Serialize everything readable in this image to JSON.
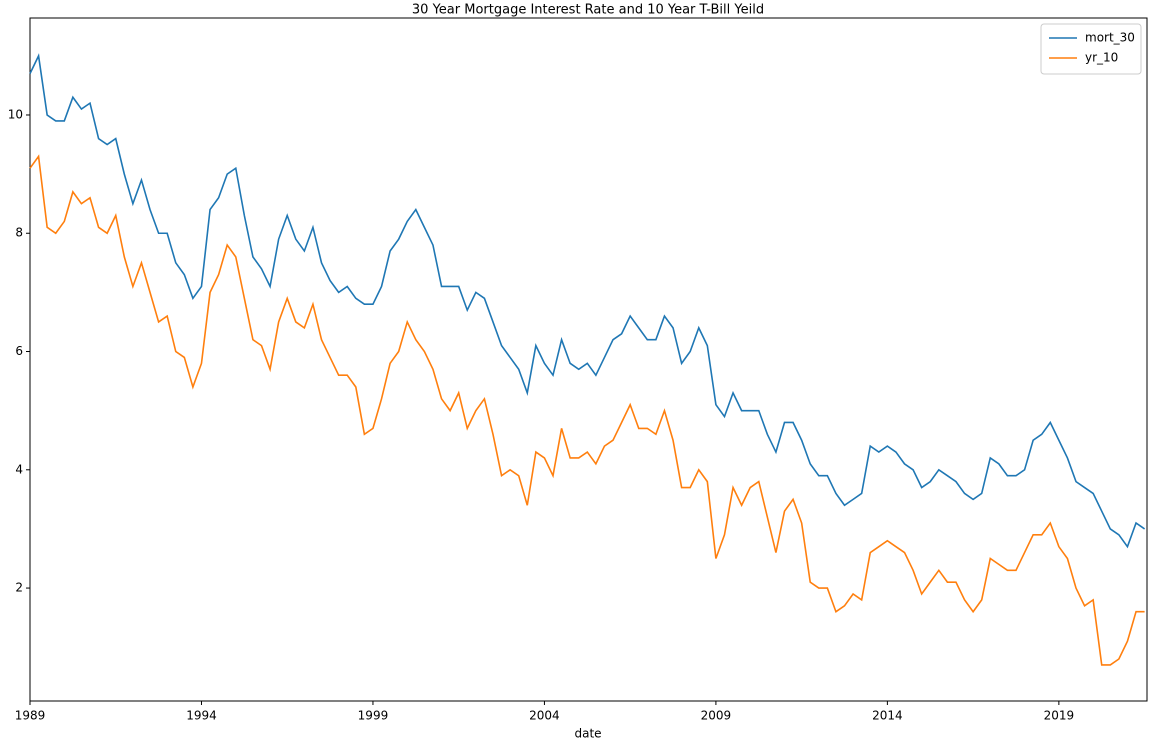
{
  "chart_data": {
    "type": "line",
    "title": "30 Year Mortgage Interest Rate and 10 Year T-Bill Yeild",
    "x_label": "date",
    "x": [
      1989,
      1989.25,
      1989.5,
      1989.75,
      1990,
      1990.25,
      1990.5,
      1990.75,
      1991,
      1991.25,
      1991.5,
      1991.75,
      1992,
      1992.25,
      1992.5,
      1992.75,
      1993,
      1993.25,
      1993.5,
      1993.75,
      1994,
      1994.25,
      1994.5,
      1994.75,
      1995,
      1995.25,
      1995.5,
      1995.75,
      1996,
      1996.25,
      1996.5,
      1996.75,
      1997,
      1997.25,
      1997.5,
      1997.75,
      1998,
      1998.25,
      1998.5,
      1998.75,
      1999,
      1999.25,
      1999.5,
      1999.75,
      2000,
      2000.25,
      2000.5,
      2000.75,
      2001,
      2001.25,
      2001.5,
      2001.75,
      2002,
      2002.25,
      2002.5,
      2002.75,
      2003,
      2003.25,
      2003.5,
      2003.75,
      2004,
      2004.25,
      2004.5,
      2004.75,
      2005,
      2005.25,
      2005.5,
      2005.75,
      2006,
      2006.25,
      2006.5,
      2006.75,
      2007,
      2007.25,
      2007.5,
      2007.75,
      2008,
      2008.25,
      2008.5,
      2008.75,
      2009,
      2009.25,
      2009.5,
      2009.75,
      2010,
      2010.25,
      2010.5,
      2010.75,
      2011,
      2011.25,
      2011.5,
      2011.75,
      2012,
      2012.25,
      2012.5,
      2012.75,
      2013,
      2013.25,
      2013.5,
      2013.75,
      2014,
      2014.25,
      2014.5,
      2014.75,
      2015,
      2015.25,
      2015.5,
      2015.75,
      2016,
      2016.25,
      2016.5,
      2016.75,
      2017,
      2017.25,
      2017.5,
      2017.75,
      2018,
      2018.25,
      2018.5,
      2018.75,
      2019,
      2019.25,
      2019.5,
      2019.75,
      2020,
      2020.25,
      2020.5,
      2020.75,
      2021,
      2021.25,
      2021.5
    ],
    "series": [
      {
        "name": "mort_30",
        "color": "#1f77b4",
        "values": [
          10.7,
          11.0,
          10.0,
          9.9,
          9.9,
          10.3,
          10.1,
          10.2,
          9.6,
          9.5,
          9.6,
          9.0,
          8.5,
          8.9,
          8.4,
          8.0,
          8.0,
          7.5,
          7.3,
          6.9,
          7.1,
          8.4,
          8.6,
          9.0,
          9.1,
          8.3,
          7.6,
          7.4,
          7.1,
          7.9,
          8.3,
          7.9,
          7.7,
          8.1,
          7.5,
          7.2,
          7.0,
          7.1,
          6.9,
          6.8,
          6.8,
          7.1,
          7.7,
          7.9,
          8.2,
          8.4,
          8.1,
          7.8,
          7.1,
          7.1,
          7.1,
          6.7,
          7.0,
          6.9,
          6.5,
          6.1,
          5.9,
          5.7,
          5.3,
          6.1,
          5.8,
          5.6,
          6.2,
          5.8,
          5.7,
          5.8,
          5.6,
          5.9,
          6.2,
          6.3,
          6.6,
          6.4,
          6.2,
          6.2,
          6.6,
          6.4,
          5.8,
          6.0,
          6.4,
          6.1,
          5.1,
          4.9,
          5.3,
          5.0,
          5.0,
          5.0,
          4.6,
          4.3,
          4.8,
          4.8,
          4.5,
          4.1,
          3.9,
          3.9,
          3.6,
          3.4,
          3.5,
          3.6,
          4.4,
          4.3,
          4.4,
          4.3,
          4.1,
          4.0,
          3.7,
          3.8,
          4.0,
          3.9,
          3.8,
          3.6,
          3.5,
          3.6,
          4.2,
          4.1,
          3.9,
          3.9,
          4.0,
          4.5,
          4.6,
          4.8,
          4.5,
          4.2,
          3.8,
          3.7,
          3.6,
          3.3,
          3.0,
          2.9,
          2.7,
          3.1,
          3.0
        ]
      },
      {
        "name": "yr_10",
        "color": "#ff7f0e",
        "values": [
          9.1,
          9.3,
          8.1,
          8.0,
          8.2,
          8.7,
          8.5,
          8.6,
          8.1,
          8.0,
          8.3,
          7.6,
          7.1,
          7.5,
          7.0,
          6.5,
          6.6,
          6.0,
          5.9,
          5.4,
          5.8,
          7.0,
          7.3,
          7.8,
          7.6,
          6.9,
          6.2,
          6.1,
          5.7,
          6.5,
          6.9,
          6.5,
          6.4,
          6.8,
          6.2,
          5.9,
          5.6,
          5.6,
          5.4,
          4.6,
          4.7,
          5.2,
          5.8,
          6.0,
          6.5,
          6.2,
          6.0,
          5.7,
          5.2,
          5.0,
          5.3,
          4.7,
          5.0,
          5.2,
          4.6,
          3.9,
          4.0,
          3.9,
          3.4,
          4.3,
          4.2,
          3.9,
          4.7,
          4.2,
          4.2,
          4.3,
          4.1,
          4.4,
          4.5,
          4.8,
          5.1,
          4.7,
          4.7,
          4.6,
          5.0,
          4.5,
          3.7,
          3.7,
          4.0,
          3.8,
          2.5,
          2.9,
          3.7,
          3.4,
          3.7,
          3.8,
          3.2,
          2.6,
          3.3,
          3.5,
          3.1,
          2.1,
          2.0,
          2.0,
          1.6,
          1.7,
          1.9,
          1.8,
          2.6,
          2.7,
          2.8,
          2.7,
          2.6,
          2.3,
          1.9,
          2.1,
          2.3,
          2.1,
          2.1,
          1.8,
          1.6,
          1.8,
          2.5,
          2.4,
          2.3,
          2.3,
          2.6,
          2.9,
          2.9,
          3.1,
          2.7,
          2.5,
          2.0,
          1.7,
          1.8,
          0.7,
          0.7,
          0.8,
          1.1,
          1.6,
          1.6
        ]
      }
    ],
    "xlim": [
      1989,
      2021.57
    ],
    "xticks": [
      1989,
      1994,
      1999,
      2004,
      2009,
      2014,
      2019
    ],
    "ylim": [
      0.09,
      11.64
    ],
    "yticks": [
      2,
      4,
      6,
      8,
      10
    ],
    "legend": "upper right"
  }
}
